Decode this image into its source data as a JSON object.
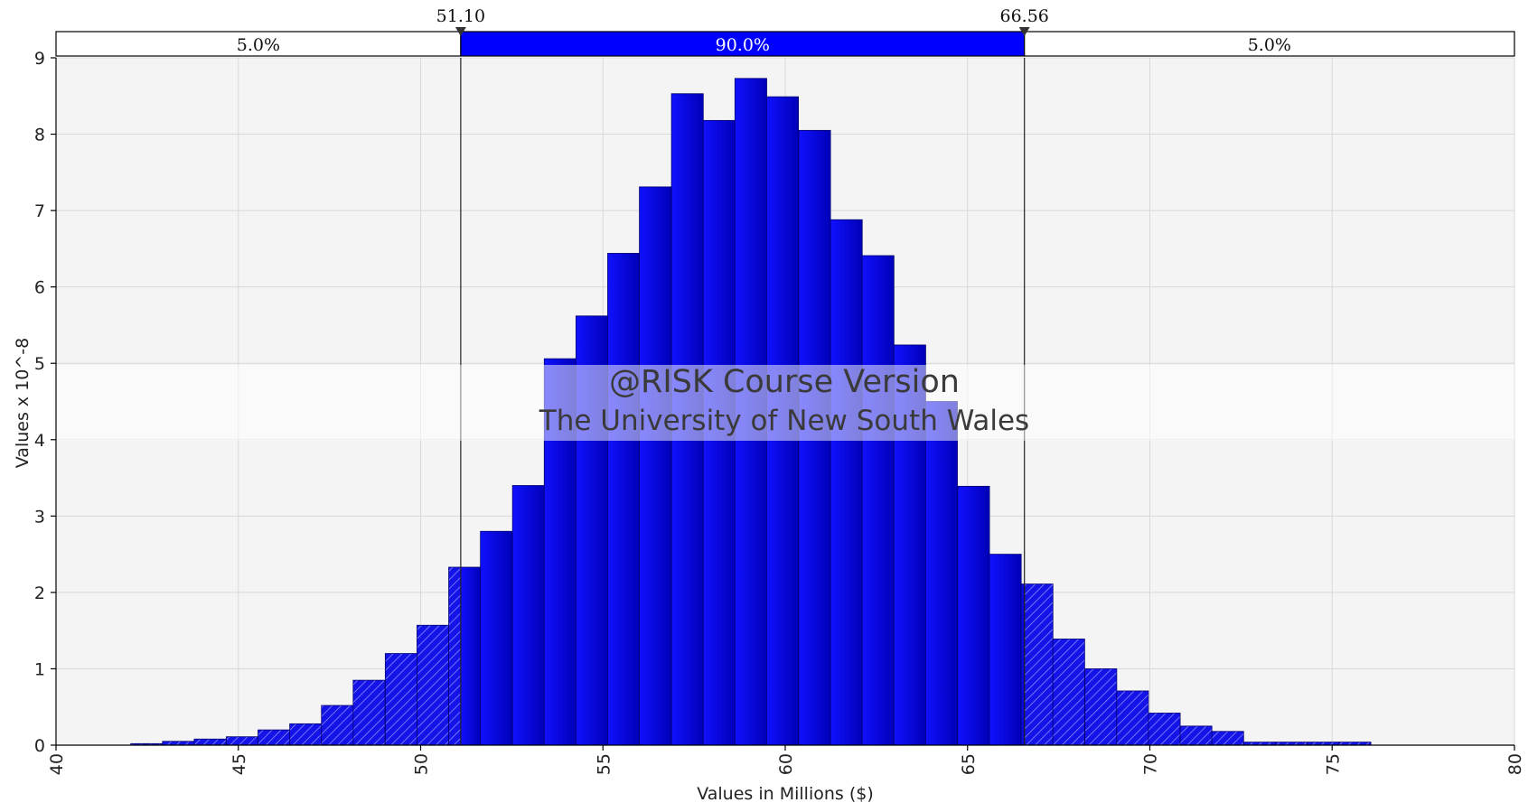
{
  "chart_data": {
    "type": "bar",
    "xlabel": "Values in Millions ($)",
    "ylabel": "Values x 10^-8",
    "xlim": [
      40,
      80
    ],
    "ylim": [
      0,
      9
    ],
    "x_ticks": [
      "40",
      "45",
      "50",
      "55",
      "60",
      "65",
      "70",
      "75",
      "80"
    ],
    "y_ticks": [
      "0",
      "1",
      "2",
      "3",
      "4",
      "5",
      "6",
      "7",
      "8",
      "9"
    ],
    "grid": true,
    "bin_width": 0.8721,
    "bin_starts": [
      42.05,
      42.92,
      43.79,
      44.67,
      45.54,
      46.41,
      47.28,
      48.15,
      49.03,
      49.9,
      50.77,
      51.64,
      52.52,
      53.39,
      54.26,
      55.13,
      56.0,
      56.88,
      57.75,
      58.62,
      59.49,
      60.37,
      61.24,
      62.11,
      62.98,
      63.85,
      64.73,
      65.6,
      66.47,
      67.34,
      68.22,
      69.09,
      69.96,
      70.83,
      71.7,
      72.58,
      73.45,
      74.32,
      75.19,
      76.07
    ],
    "values": [
      0.02,
      0.05,
      0.08,
      0.11,
      0.2,
      0.28,
      0.52,
      0.85,
      1.2,
      1.57,
      2.33,
      2.8,
      3.4,
      5.06,
      5.62,
      6.44,
      7.31,
      8.53,
      8.18,
      8.73,
      8.49,
      8.05,
      6.88,
      6.41,
      5.24,
      4.5,
      3.39,
      2.5,
      2.11,
      1.39,
      1.0,
      0.71,
      0.42,
      0.25,
      0.18,
      0.04,
      0.04,
      0.04,
      0.04,
      0.0
    ],
    "delimiters": {
      "left_value": "51.10",
      "right_value": "66.56",
      "left_pct": "5.0%",
      "middle_pct": "90.0%",
      "right_pct": "5.0%"
    },
    "colors": {
      "bar": "#0000e6",
      "bar_tail": "#2a2af0",
      "band_middle": "#0000ff",
      "plot_bg": "#f4f4f4",
      "grid": "#d8d8d8"
    }
  },
  "watermark": {
    "line1": "@RISK Course Version",
    "line2": "The University of New South Wales"
  }
}
